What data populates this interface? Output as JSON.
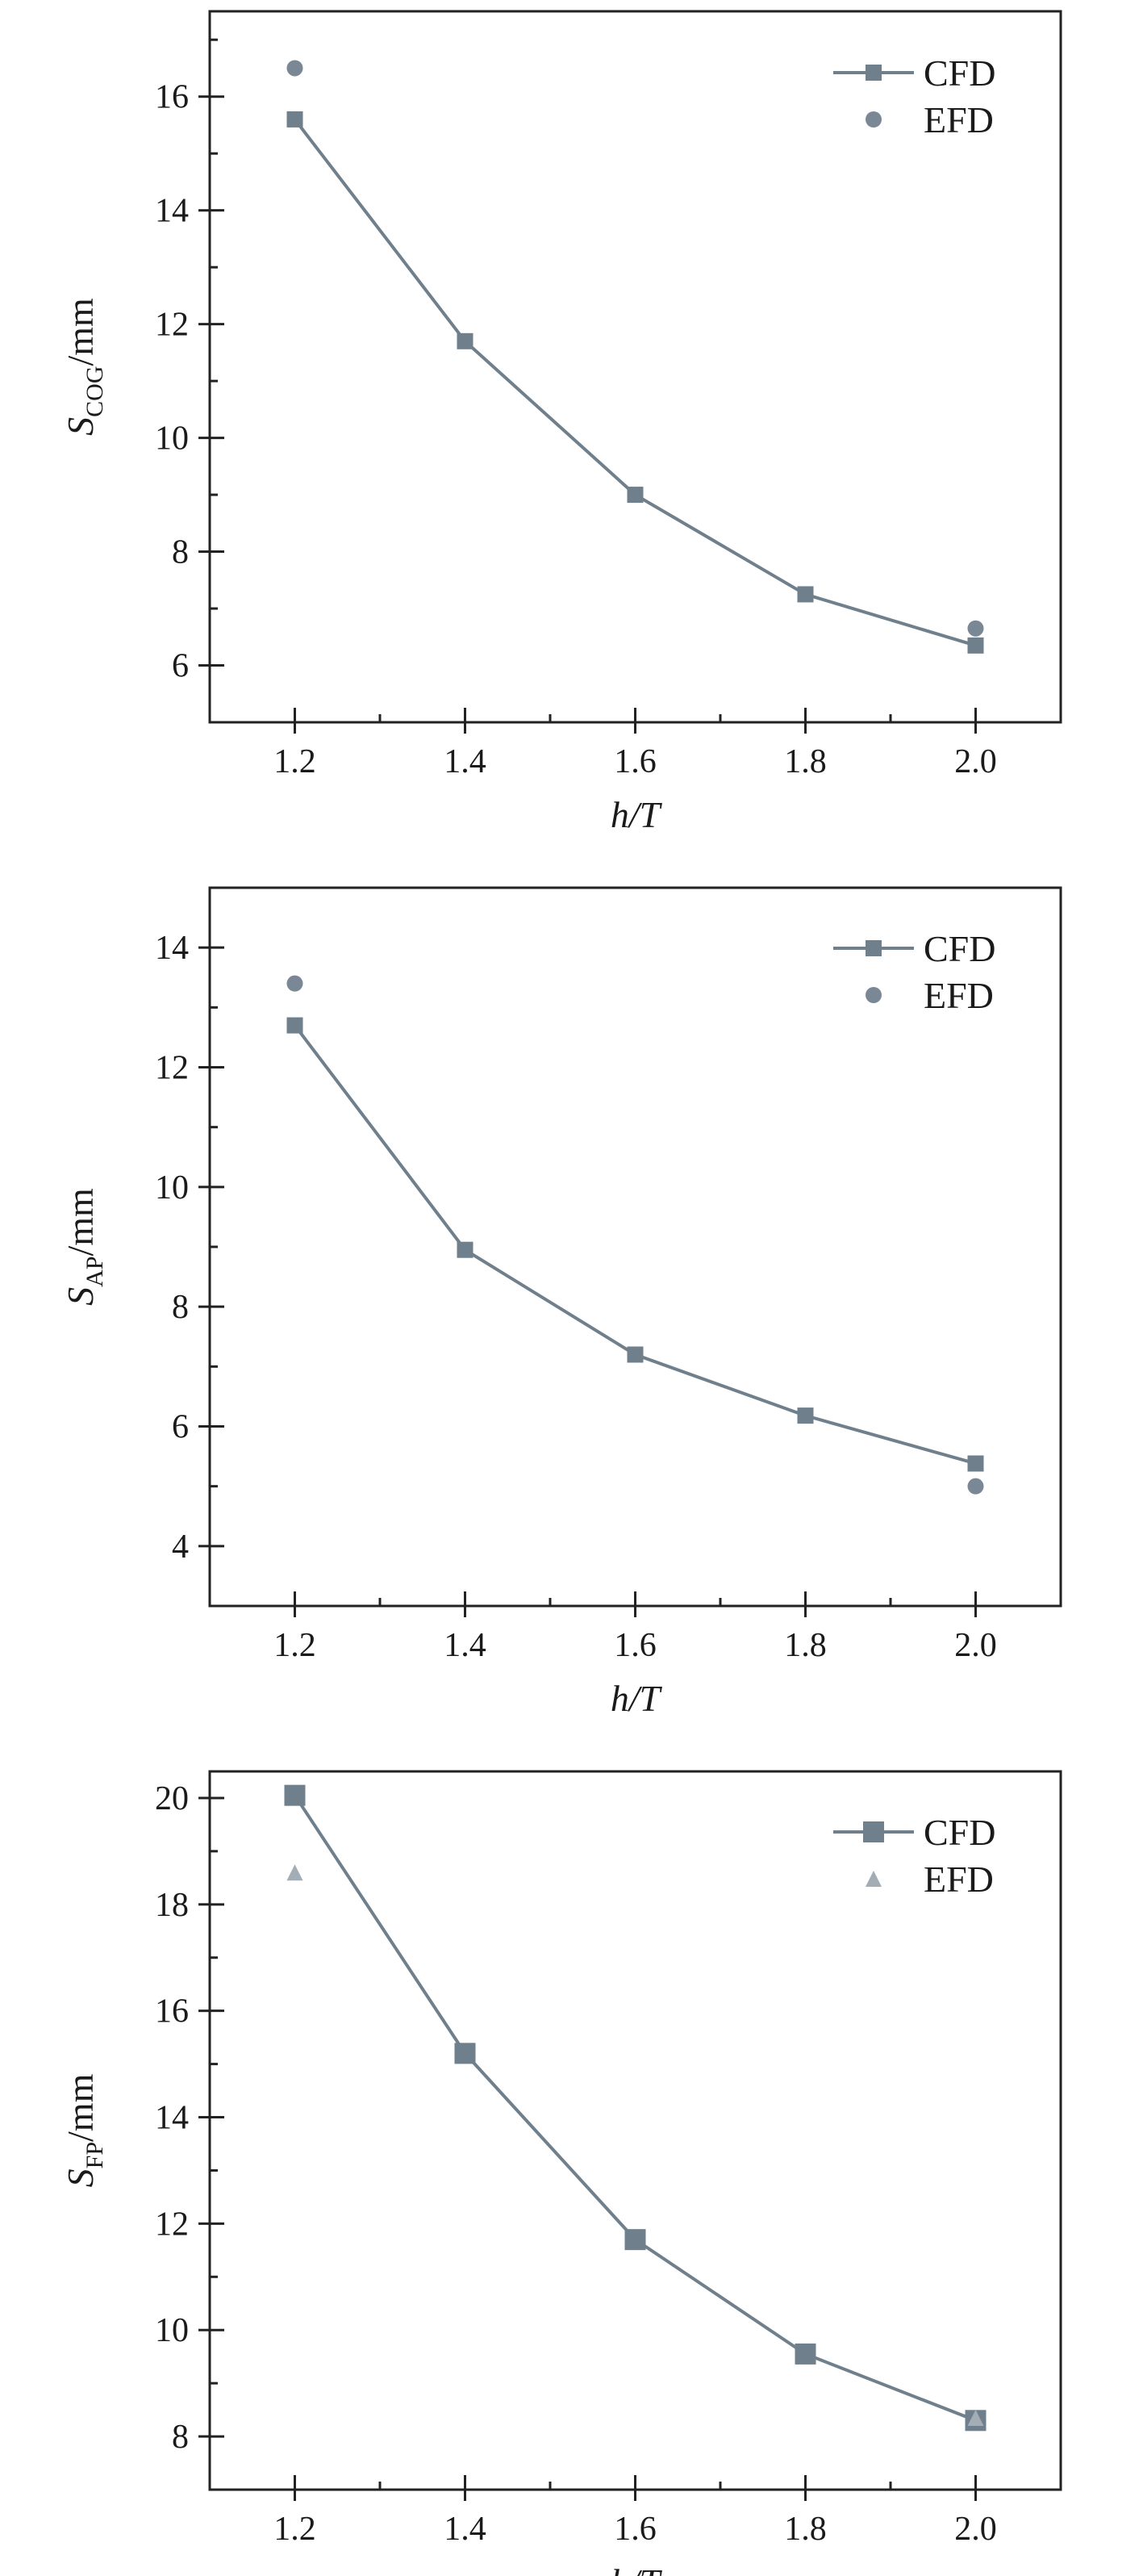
{
  "charts": [
    {
      "chart_data": {
        "type": "line",
        "title": "",
        "xlabel": "h/T",
        "ylabel_main": "S",
        "ylabel_sub": "COG",
        "ylabel_unit": "/mm",
        "xlim": [
          1.1,
          2.1
        ],
        "ylim": [
          5,
          17.5
        ],
        "xticks": [
          1.2,
          1.4,
          1.6,
          1.8,
          2.0
        ],
        "xtick_labels": [
          "1.2",
          "1.4",
          "1.6",
          "1.8",
          "2.0"
        ],
        "yticks": [
          6,
          8,
          10,
          12,
          14,
          16
        ],
        "ytick_labels": [
          "6",
          "8",
          "10",
          "12",
          "14",
          "16"
        ],
        "legend_position": "top-right",
        "grid": false,
        "series": [
          {
            "name": "CFD",
            "marker": "square",
            "line": true,
            "x": [
              1.2,
              1.4,
              1.6,
              1.8,
              2.0
            ],
            "y": [
              15.6,
              11.7,
              9.0,
              7.25,
              6.35
            ]
          },
          {
            "name": "EFD",
            "marker": "circle",
            "line": false,
            "x": [
              1.2,
              2.0
            ],
            "y": [
              16.5,
              6.65
            ]
          }
        ]
      }
    },
    {
      "chart_data": {
        "type": "line",
        "title": "",
        "xlabel": "h/T",
        "ylabel_main": "S",
        "ylabel_sub": "AP",
        "ylabel_unit": "/mm",
        "xlim": [
          1.1,
          2.1
        ],
        "ylim": [
          3,
          15
        ],
        "xticks": [
          1.2,
          1.4,
          1.6,
          1.8,
          2.0
        ],
        "xtick_labels": [
          "1.2",
          "1.4",
          "1.6",
          "1.8",
          "2.0"
        ],
        "yticks": [
          4,
          6,
          8,
          10,
          12,
          14
        ],
        "ytick_labels": [
          "4",
          "6",
          "8",
          "10",
          "12",
          "14"
        ],
        "legend_position": "top-right",
        "grid": false,
        "series": [
          {
            "name": "CFD",
            "marker": "square",
            "line": true,
            "x": [
              1.2,
              1.4,
              1.6,
              1.8,
              2.0
            ],
            "y": [
              12.7,
              8.95,
              7.2,
              6.18,
              5.38
            ]
          },
          {
            "name": "EFD",
            "marker": "circle",
            "line": false,
            "x": [
              1.2,
              2.0
            ],
            "y": [
              13.4,
              5.0
            ]
          }
        ]
      }
    },
    {
      "chart_data": {
        "type": "line",
        "title": "",
        "xlabel": "h/T",
        "ylabel_main": "S",
        "ylabel_sub": "FP",
        "ylabel_unit": "/mm",
        "xlim": [
          1.1,
          2.1
        ],
        "ylim": [
          7,
          20.5
        ],
        "xticks": [
          1.2,
          1.4,
          1.6,
          1.8,
          2.0
        ],
        "xtick_labels": [
          "1.2",
          "1.4",
          "1.6",
          "1.8",
          "2.0"
        ],
        "yticks": [
          8,
          10,
          12,
          14,
          16,
          18,
          20
        ],
        "ytick_labels": [
          "8",
          "10",
          "12",
          "14",
          "16",
          "18",
          "20"
        ],
        "legend_position": "top-right",
        "grid": false,
        "series": [
          {
            "name": "CFD",
            "marker": "square",
            "line": true,
            "x": [
              1.2,
              1.4,
              1.6,
              1.8,
              2.0
            ],
            "y": [
              20.05,
              15.2,
              11.7,
              9.55,
              8.3
            ]
          },
          {
            "name": "EFD",
            "marker": "triangle",
            "line": false,
            "x": [
              1.2,
              2.0
            ],
            "y": [
              18.6,
              8.35
            ]
          }
        ]
      }
    }
  ],
  "colors": {
    "cfd": "#6f7f8c",
    "efd_circle": "#7a8794",
    "efd_triangle": "#a3adb5",
    "axis": "#222222"
  }
}
